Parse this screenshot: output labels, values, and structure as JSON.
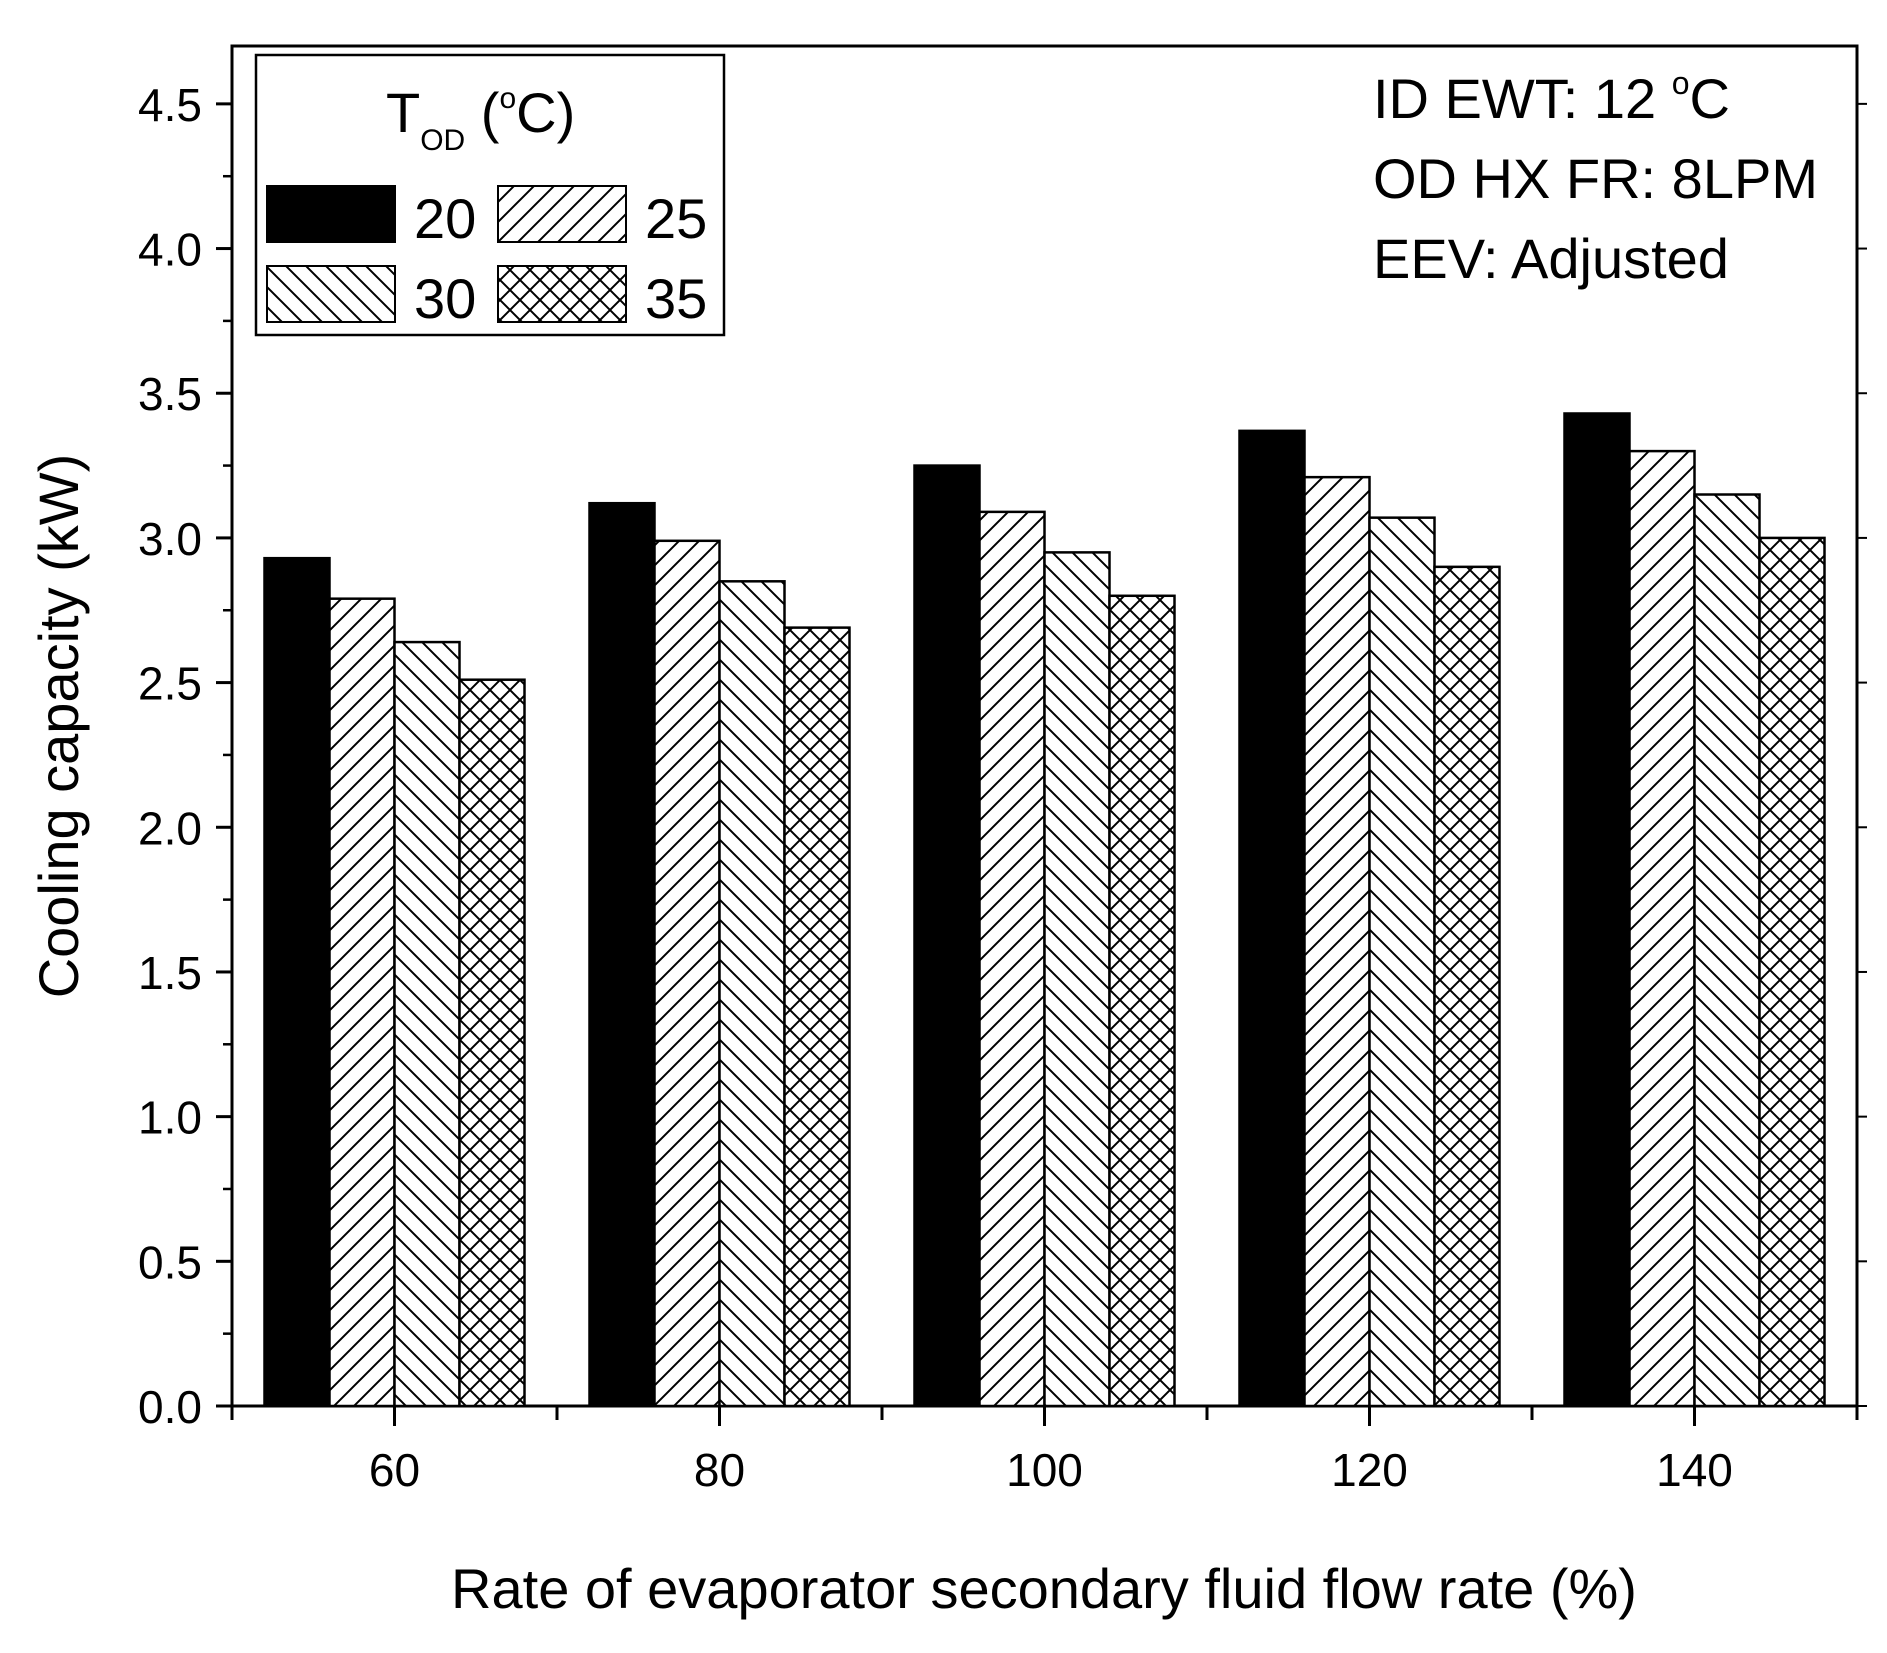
{
  "chart_data": {
    "type": "bar",
    "xlabel": "Rate of evaporator secondary fluid flow rate (%)",
    "ylabel": "Cooling capacity (kW)",
    "ylim": [
      0,
      4.7
    ],
    "yticks": [
      "0.0",
      "0.5",
      "1.0",
      "1.5",
      "2.0",
      "2.5",
      "3.0",
      "3.5",
      "4.0",
      "4.5"
    ],
    "categories": [
      "60",
      "80",
      "100",
      "120",
      "140"
    ],
    "series": [
      {
        "name": "20",
        "pattern": "solid",
        "values": [
          2.93,
          3.12,
          3.25,
          3.37,
          3.43
        ]
      },
      {
        "name": "25",
        "pattern": "hatch-forward",
        "values": [
          2.79,
          2.99,
          3.09,
          3.21,
          3.3
        ]
      },
      {
        "name": "30",
        "pattern": "hatch-back",
        "values": [
          2.64,
          2.85,
          2.95,
          3.07,
          3.15
        ]
      },
      {
        "name": "35",
        "pattern": "crosshatch",
        "values": [
          2.51,
          2.69,
          2.8,
          2.9,
          3.0
        ]
      }
    ],
    "legend": {
      "title_main": "T",
      "title_sub": "OD",
      "title_open": " (",
      "title_sup": "o",
      "title_close": "C)",
      "placement": "top-left"
    },
    "annotations": {
      "line1_main": "ID EWT: 12 ",
      "line1_sup": "o",
      "line1_unit": "C",
      "line2": "OD HX FR: 8LPM",
      "line3": "EEV: Adjusted"
    },
    "grid": false,
    "colors": {
      "bar_fill": "#000000",
      "hatch_bg": "#ffffff",
      "axis": "#000000"
    }
  }
}
